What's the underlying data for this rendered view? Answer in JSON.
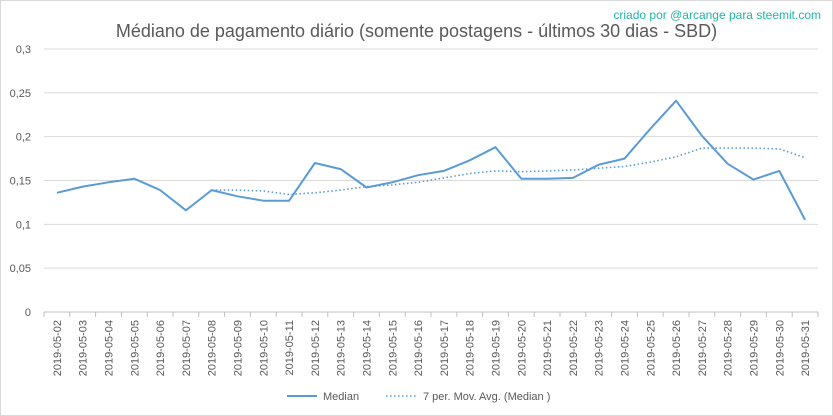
{
  "credit": "criado por @arcange para steemit.com",
  "colors": {
    "series": "#5b9bd5",
    "grid": "#d9d9d9",
    "text": "#595959",
    "credit": "#21b6a8"
  },
  "chart_data": {
    "type": "line",
    "title": "Médiano de pagamento diário (somente postagens - últimos 30 dias - SBD)",
    "xlabel": "",
    "ylabel": "",
    "ylim": [
      0,
      0.3
    ],
    "yticks": [
      "0",
      "0,05",
      "0,1",
      "0,15",
      "0,2",
      "0,25",
      "0,3"
    ],
    "ytick_values": [
      0,
      0.05,
      0.1,
      0.15,
      0.2,
      0.25,
      0.3
    ],
    "grid": true,
    "legend_position": "bottom",
    "categories": [
      "2019-05-02",
      "2019-05-03",
      "2019-05-04",
      "2019-05-05",
      "2019-05-06",
      "2019-05-07",
      "2019-05-08",
      "2019-05-09",
      "2019-05-10",
      "2019-05-11",
      "2019-05-12",
      "2019-05-13",
      "2019-05-14",
      "2019-05-15",
      "2019-05-16",
      "2019-05-17",
      "2019-05-18",
      "2019-05-19",
      "2019-05-20",
      "2019-05-21",
      "2019-05-22",
      "2019-05-23",
      "2019-05-24",
      "2019-05-25",
      "2019-05-26",
      "2019-05-27",
      "2019-05-28",
      "2019-05-29",
      "2019-05-30",
      "2019-05-31"
    ],
    "series": [
      {
        "name": "Median",
        "style": "solid",
        "values": [
          0.136,
          0.143,
          0.148,
          0.152,
          0.139,
          0.116,
          0.139,
          0.132,
          0.127,
          0.127,
          0.17,
          0.163,
          0.142,
          0.148,
          0.156,
          0.161,
          0.173,
          0.188,
          0.152,
          0.152,
          0.153,
          0.168,
          0.175,
          0.209,
          0.241,
          0.201,
          0.169,
          0.151,
          0.161,
          0.105
        ]
      },
      {
        "name": "7 per. Mov. Avg. (Median )",
        "style": "dotted",
        "values": [
          null,
          null,
          null,
          null,
          null,
          null,
          0.139,
          0.139,
          0.138,
          0.134,
          0.136,
          0.139,
          0.143,
          0.145,
          0.148,
          0.153,
          0.158,
          0.161,
          0.16,
          0.161,
          0.162,
          0.164,
          0.166,
          0.171,
          0.177,
          0.187,
          0.187,
          0.187,
          0.186,
          0.176
        ]
      }
    ]
  }
}
